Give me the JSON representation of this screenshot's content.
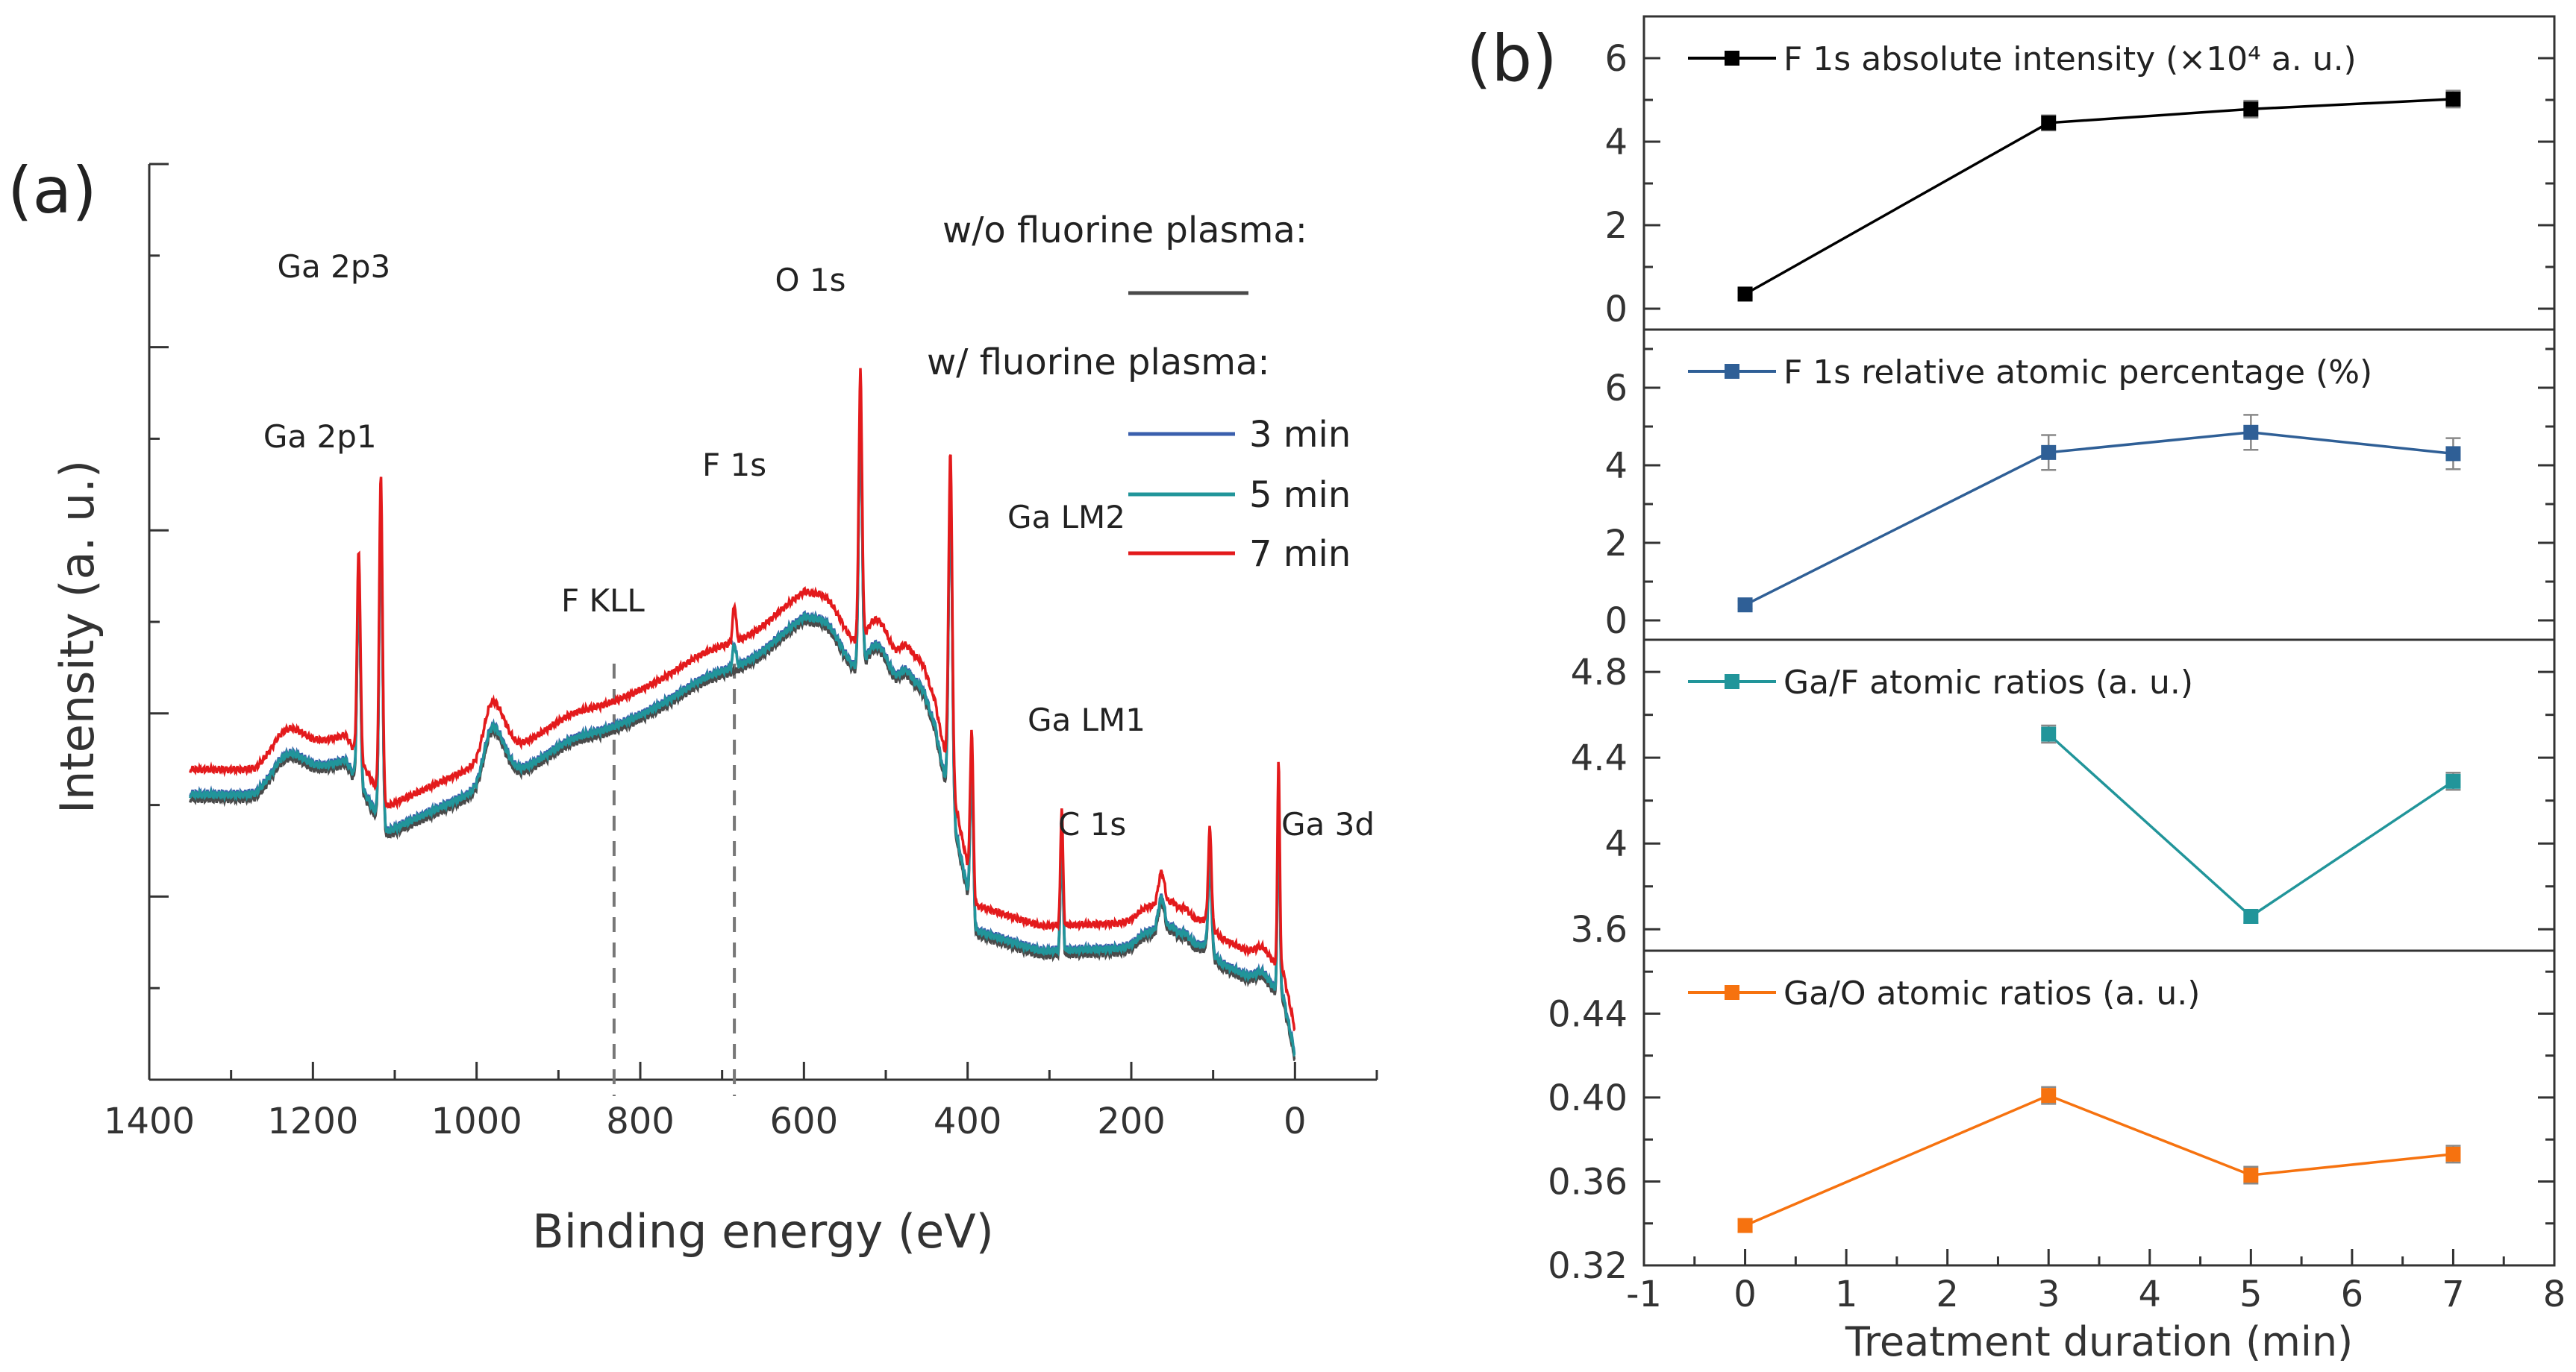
{
  "chart_data": [
    {
      "panel": "(a)",
      "type": "line",
      "xlabel": "Binding energy (eV)",
      "ylabel": "Intensity (a. u.)",
      "xlim": [
        1400,
        -100
      ],
      "xticks": [
        1400,
        1200,
        1000,
        800,
        600,
        400,
        200,
        0
      ],
      "legend": {
        "title_without": "w/o fluorine plasma:",
        "title_with": "w/ fluorine plasma:",
        "entries": [
          "3 min",
          "5 min",
          "7 min"
        ]
      },
      "series": [
        {
          "name": "w/o fluorine plasma",
          "color": "#4a4a4a",
          "offset": 0
        },
        {
          "name": "3 min",
          "color": "#3a5fad",
          "offset": 8
        },
        {
          "name": "5 min",
          "color": "#21959a",
          "offset": 6
        },
        {
          "name": "7 min",
          "color": "#e31a1c",
          "offset": 40
        }
      ],
      "peaks": [
        {
          "label": "Ga 2p1",
          "x": 1144,
          "color": "#222222"
        },
        {
          "label": "Ga 2p3",
          "x": 1117,
          "color": "#222222"
        },
        {
          "label": "O 1s",
          "x": 531,
          "color": "#222222"
        },
        {
          "label": "F 1s",
          "x": 685,
          "color": "#e31a1c"
        },
        {
          "label": "F KLL",
          "x": 832,
          "color": "#e31a1c"
        },
        {
          "label": "Ga LM2",
          "x": 421,
          "color": "#222222"
        },
        {
          "label": "Ga LM1",
          "x": 395,
          "color": "#222222"
        },
        {
          "label": "C 1s",
          "x": 285,
          "color": "#222222"
        },
        {
          "label": "Ga 3d",
          "x": 20,
          "color": "#222222"
        }
      ]
    },
    {
      "panel": "(b)",
      "type": "line",
      "xlabel": "Treatment duration (min)",
      "xlim": [
        -1,
        8
      ],
      "xticks": [
        -1,
        0,
        1,
        2,
        3,
        4,
        5,
        6,
        7,
        8
      ],
      "subplots": [
        {
          "name": "F 1s absolute intensity",
          "legend": "F 1s absolute intensity (×10⁴ a. u.)",
          "color": "#000000",
          "ylim": [
            -0.5,
            7
          ],
          "yticks": [
            0,
            2,
            4,
            6
          ],
          "x": [
            0,
            3,
            5,
            7
          ],
          "y": [
            0.35,
            4.45,
            4.78,
            5.02
          ],
          "err": [
            0.08,
            0.18,
            0.2,
            0.2
          ]
        },
        {
          "name": "F 1s relative atomic percentage",
          "legend": "F 1s relative atomic percentage (%)",
          "color": "#2f5f96",
          "ylim": [
            -0.5,
            7.5
          ],
          "yticks": [
            0,
            2,
            4,
            6
          ],
          "x": [
            0,
            3,
            5,
            7
          ],
          "y": [
            0.4,
            4.33,
            4.85,
            4.3
          ],
          "err": [
            0.1,
            0.45,
            0.45,
            0.4
          ]
        },
        {
          "name": "Ga/F atomic ratios",
          "legend": "Ga/F atomic ratios (a. u.)",
          "color": "#21959a",
          "ylim": [
            3.5,
            4.95
          ],
          "yticks": [
            3.6,
            4.0,
            4.4,
            4.8
          ],
          "x": [
            3,
            5,
            7
          ],
          "y": [
            4.51,
            3.66,
            4.29
          ],
          "err": [
            0.04,
            0.03,
            0.04
          ]
        },
        {
          "name": "Ga/O atomic ratios",
          "legend": "Ga/O atomic ratios (a. u.)",
          "color": "#f6720f",
          "ylim": [
            0.32,
            0.47
          ],
          "yticks": [
            0.32,
            0.36,
            0.4,
            0.44
          ],
          "x": [
            0,
            3,
            5,
            7
          ],
          "y": [
            0.339,
            0.401,
            0.363,
            0.373
          ],
          "err": [
            0.003,
            0.004,
            0.004,
            0.004
          ]
        }
      ]
    }
  ]
}
